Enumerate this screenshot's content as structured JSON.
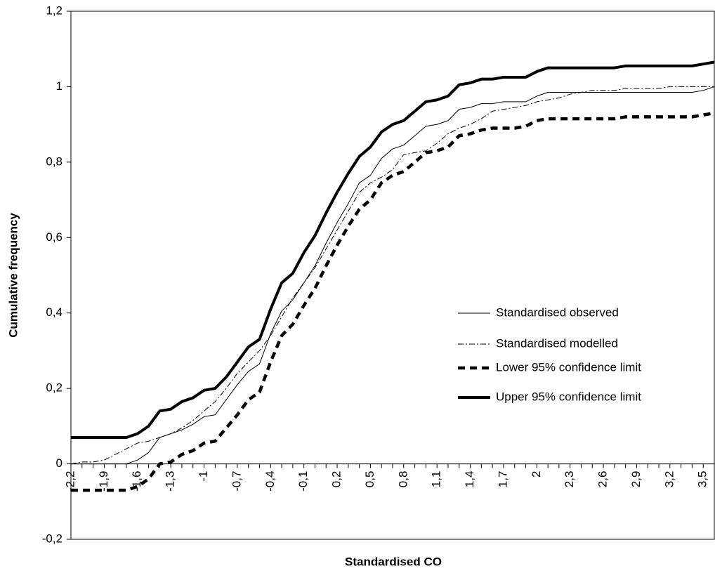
{
  "chart_data": {
    "type": "line",
    "x_label": "Standardised CO",
    "y_label": "Cumulative frequency",
    "categories": [
      "-2,2",
      null,
      null,
      "-1,9",
      null,
      null,
      "-1,6",
      null,
      null,
      "-1,3",
      null,
      null,
      "-1",
      null,
      null,
      "-0,7",
      null,
      null,
      "-0,4",
      null,
      null,
      "-0,1",
      null,
      null,
      "0,2",
      null,
      null,
      "0,5",
      null,
      null,
      "0,8",
      null,
      null,
      "1,1",
      null,
      null,
      "1,4",
      null,
      null,
      "1,7",
      null,
      null,
      "2",
      null,
      null,
      "2,3",
      null,
      null,
      "2,6",
      null,
      null,
      "2,9",
      null,
      null,
      "3,2",
      null,
      null,
      "3,5",
      null
    ],
    "ylim": [
      -0.2,
      1.2
    ],
    "yticks": [
      {
        "value": -0.2,
        "label": "-0,2"
      },
      0,
      {
        "value": 0.2,
        "label": "0,2"
      },
      {
        "value": 0.4,
        "label": "0,4"
      },
      {
        "value": 0.6,
        "label": "0,6"
      },
      {
        "value": 0.8,
        "label": "0,8"
      },
      1,
      {
        "value": 1.2,
        "label": "1,2"
      }
    ],
    "grid": false,
    "legend": "right",
    "series": [
      {
        "name": "Standardised observed",
        "color": "#000000",
        "line_style": "thin",
        "values": [
          0,
          0,
          0,
          0,
          0,
          0,
          0.01,
          0.03,
          0.07,
          0.08,
          0.09,
          0.105,
          0.125,
          0.13,
          0.17,
          0.21,
          0.245,
          0.265,
          0.345,
          0.405,
          0.435,
          0.48,
          0.525,
          0.585,
          0.64,
          0.69,
          0.745,
          0.765,
          0.81,
          0.835,
          0.845,
          0.87,
          0.895,
          0.9,
          0.91,
          0.94,
          0.945,
          0.955,
          0.955,
          0.96,
          0.96,
          0.96,
          0.975,
          0.985,
          0.985,
          0.985,
          0.985,
          0.985,
          0.985,
          0.985,
          0.985,
          0.985,
          0.985,
          0.985,
          0.985,
          0.985,
          0.985,
          0.99,
          1.0
        ]
      },
      {
        "name": "Standardised modelled",
        "color": "#000000",
        "line_style": "dash-dot",
        "values": [
          0,
          0.005,
          0.005,
          0.01,
          0.025,
          0.04,
          0.055,
          0.06,
          0.07,
          0.08,
          0.095,
          0.115,
          0.14,
          0.165,
          0.2,
          0.24,
          0.27,
          0.3,
          0.34,
          0.39,
          0.44,
          0.48,
          0.52,
          0.57,
          0.62,
          0.67,
          0.72,
          0.745,
          0.76,
          0.78,
          0.82,
          0.825,
          0.83,
          0.85,
          0.875,
          0.89,
          0.9,
          0.915,
          0.935,
          0.94,
          0.945,
          0.95,
          0.96,
          0.965,
          0.97,
          0.98,
          0.985,
          0.99,
          0.99,
          0.99,
          0.995,
          0.995,
          0.995,
          0.995,
          1.0,
          1.0,
          1.0,
          1.0,
          1.0
        ]
      },
      {
        "name": "Lower 95% confidence limit",
        "color": "#000000",
        "line_style": "dashed-thick",
        "values": [
          -0.07,
          -0.07,
          -0.07,
          -0.07,
          -0.07,
          -0.07,
          -0.06,
          -0.04,
          0,
          0.005,
          0.025,
          0.035,
          0.055,
          0.06,
          0.095,
          0.13,
          0.17,
          0.19,
          0.27,
          0.34,
          0.37,
          0.42,
          0.465,
          0.525,
          0.58,
          0.63,
          0.675,
          0.7,
          0.745,
          0.765,
          0.775,
          0.8,
          0.825,
          0.83,
          0.84,
          0.87,
          0.875,
          0.885,
          0.89,
          0.89,
          0.89,
          0.895,
          0.91,
          0.915,
          0.915,
          0.915,
          0.915,
          0.915,
          0.915,
          0.915,
          0.92,
          0.92,
          0.92,
          0.92,
          0.92,
          0.92,
          0.92,
          0.925,
          0.93
        ]
      },
      {
        "name": "Upper 95% confidence limit",
        "color": "#000000",
        "line_style": "thick",
        "values": [
          0.07,
          0.07,
          0.07,
          0.07,
          0.07,
          0.07,
          0.08,
          0.1,
          0.14,
          0.145,
          0.165,
          0.175,
          0.195,
          0.2,
          0.23,
          0.27,
          0.31,
          0.33,
          0.41,
          0.48,
          0.505,
          0.56,
          0.605,
          0.665,
          0.72,
          0.77,
          0.815,
          0.84,
          0.88,
          0.9,
          0.91,
          0.935,
          0.96,
          0.965,
          0.975,
          1.005,
          1.01,
          1.02,
          1.02,
          1.025,
          1.025,
          1.025,
          1.04,
          1.05,
          1.05,
          1.05,
          1.05,
          1.05,
          1.05,
          1.05,
          1.055,
          1.055,
          1.055,
          1.055,
          1.055,
          1.055,
          1.055,
          1.06,
          1.065
        ]
      }
    ]
  }
}
